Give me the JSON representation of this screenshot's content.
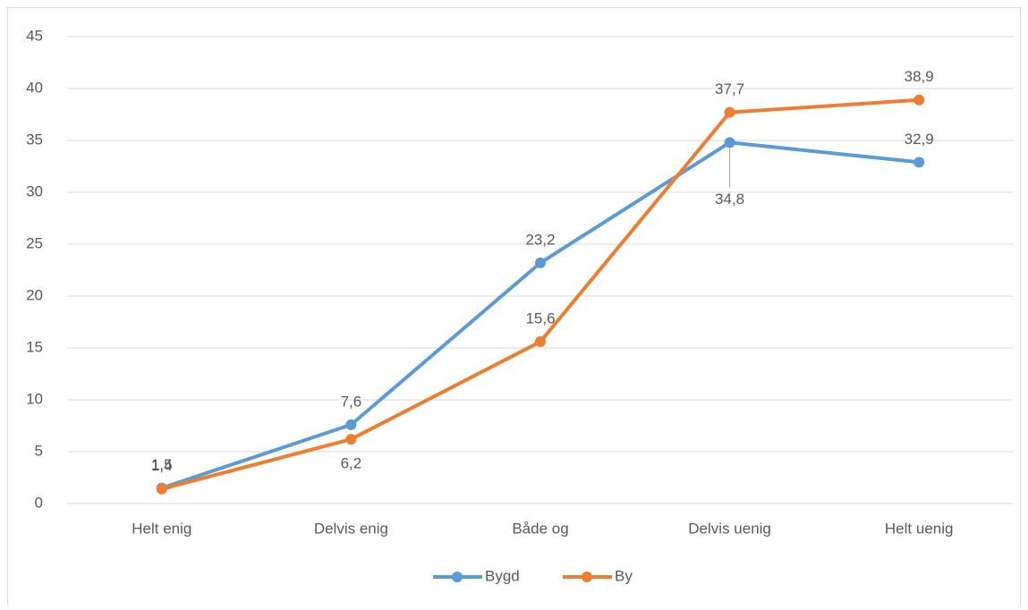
{
  "chart_data": {
    "type": "line",
    "categories": [
      "Helt enig",
      "Delvis enig",
      "Både og",
      "Delvis uenig",
      "Helt uenig"
    ],
    "series": [
      {
        "name": "Bygd",
        "color": "#5b9bd5",
        "values": [
          1.5,
          7.6,
          23.2,
          34.8,
          32.9
        ],
        "value_labels": [
          "1,5",
          "7,6",
          "23,2",
          "34,8",
          "32,9"
        ]
      },
      {
        "name": "By",
        "color": "#ed7d31",
        "values": [
          1.4,
          6.2,
          15.6,
          37.7,
          38.9
        ],
        "value_labels": [
          "1,4",
          "6,2",
          "15,6",
          "37,7",
          "38,9"
        ]
      }
    ],
    "ylim": [
      0,
      45
    ],
    "yticks": [
      0,
      5,
      10,
      15,
      20,
      25,
      30,
      35,
      40,
      45
    ],
    "grid": true,
    "legend": "bottom"
  }
}
